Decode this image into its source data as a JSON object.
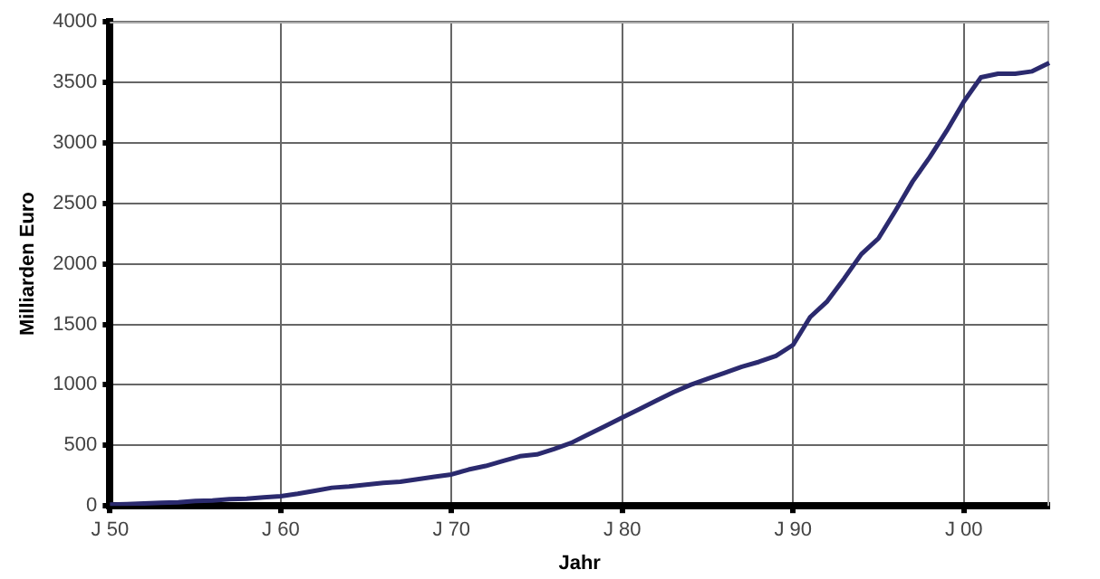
{
  "chart_data": {
    "type": "line",
    "xlabel": "Jahr",
    "ylabel": "Milliarden Euro",
    "categories": [
      "J 50",
      null,
      null,
      null,
      null,
      null,
      null,
      null,
      null,
      null,
      "J 60",
      null,
      null,
      null,
      null,
      null,
      null,
      null,
      null,
      null,
      "J 70",
      null,
      null,
      null,
      null,
      null,
      null,
      null,
      null,
      null,
      "J 80",
      null,
      null,
      null,
      null,
      null,
      null,
      null,
      null,
      null,
      "J 90",
      null,
      null,
      null,
      null,
      null,
      null,
      null,
      null,
      null,
      "J 00",
      null,
      null,
      null,
      null,
      null
    ],
    "series": [
      {
        "color": "#2b2a6e",
        "values": [
          10,
          15,
          20,
          25,
          30,
          40,
          45,
          55,
          60,
          70,
          80,
          100,
          125,
          150,
          160,
          175,
          190,
          200,
          220,
          240,
          260,
          300,
          330,
          370,
          410,
          425,
          470,
          520,
          590,
          660,
          730,
          800,
          870,
          940,
          1000,
          1050,
          1100,
          1150,
          1190,
          1240,
          1330,
          1560,
          1690,
          1880,
          2080,
          2210,
          2440,
          2680,
          2880,
          3100,
          3340,
          3540,
          3570,
          3570,
          3590,
          3660
        ]
      }
    ],
    "ylim": [
      0,
      4000
    ],
    "yticks": [
      0,
      500,
      1000,
      1500,
      2000,
      2500,
      3000,
      3500,
      4000
    ],
    "grid": true,
    "marker": "none",
    "line_style": "solid"
  }
}
